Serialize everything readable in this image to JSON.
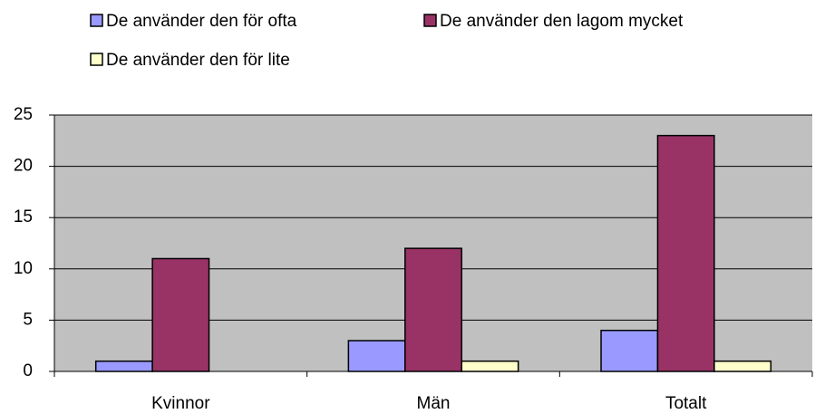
{
  "chart_data": {
    "type": "bar",
    "categories": [
      "Kvinnor",
      "Män",
      "Totalt"
    ],
    "series": [
      {
        "name": "De använder den för ofta",
        "color": "#9999ff",
        "values": [
          1,
          3,
          4
        ]
      },
      {
        "name": "De använder den lagom mycket",
        "color": "#993366",
        "values": [
          11,
          12,
          23
        ]
      },
      {
        "name": "De använder den för lite",
        "color": "#ffffcc",
        "values": [
          0,
          1,
          1
        ]
      }
    ],
    "ylim": [
      0,
      25
    ],
    "yticks": [
      0,
      5,
      10,
      15,
      20,
      25
    ],
    "grid": true,
    "plot_background": "#c0c0c0"
  }
}
